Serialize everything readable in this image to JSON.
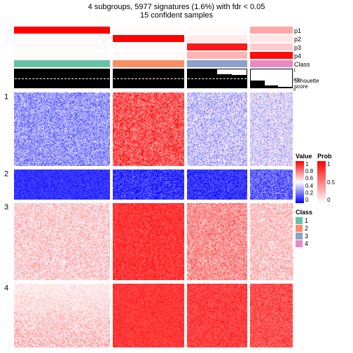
{
  "title": "4 subgroups, 5977 signatures (1.6%) with fdr < 0.05",
  "subtitle": "15 confident samples",
  "column_groups": {
    "widths_flex": [
      1.35,
      1.0,
      0.85,
      0.6
    ],
    "class_colors": [
      "#66c2a5",
      "#fc8d62",
      "#8da0cb",
      "#e78ac3"
    ]
  },
  "probability_tracks": [
    {
      "label": "p1",
      "values": [
        1.0,
        0.02,
        0.02,
        0.35
      ]
    },
    {
      "label": "p2",
      "values": [
        0.02,
        1.0,
        0.08,
        0.1
      ]
    },
    {
      "label": "p3",
      "values": [
        0.02,
        0.02,
        0.9,
        0.2
      ]
    },
    {
      "label": "p4",
      "values": [
        0.02,
        0.02,
        0.3,
        0.95
      ]
    }
  ],
  "silhouette": {
    "label": "Silhouette score",
    "ticks": [
      "1",
      "0.5",
      "0"
    ],
    "heights": [
      [
        1,
        1,
        1,
        1,
        1,
        1,
        1
      ],
      [
        1,
        1,
        1,
        1,
        1
      ],
      [
        1,
        1,
        0.75,
        0.7
      ],
      [
        0.4,
        0.1,
        0.05
      ]
    ],
    "bg": "#ffffff",
    "bar": "#000000"
  },
  "heatmap_rows": [
    {
      "label": "1",
      "height_flex": 1.1,
      "group_palettes": [
        {
          "center": "#8888ee",
          "spread": 0.35
        },
        {
          "center": "#ee6644",
          "spread": 0.45
        },
        {
          "center": "#aa88dd",
          "spread": 0.4
        },
        {
          "center": "#bbaadd",
          "spread": 0.35
        }
      ]
    },
    {
      "label": "2",
      "height_flex": 0.45,
      "group_palettes": [
        {
          "center": "#1010dd",
          "spread": 0.15
        },
        {
          "center": "#2020ee",
          "spread": 0.3
        },
        {
          "center": "#2525ee",
          "spread": 0.25
        },
        {
          "center": "#5050ee",
          "spread": 0.35
        }
      ]
    },
    {
      "label": "3",
      "height_flex": 1.15,
      "group_palettes": [
        {
          "center": "#f7cccc",
          "spread": 0.3
        },
        {
          "center": "#e82020",
          "spread": 0.2
        },
        {
          "center": "#ee8080",
          "spread": 0.35
        },
        {
          "center": "#f0b8b8",
          "spread": 0.3
        }
      ]
    },
    {
      "label": "4",
      "height_flex": 0.95,
      "group_palettes": [
        {
          "center": "#f5bbbb",
          "spread": 0.35,
          "grad": "whiten_top"
        },
        {
          "center": "#d81010",
          "spread": 0.15
        },
        {
          "center": "#e02020",
          "spread": 0.2
        },
        {
          "center": "#e83838",
          "spread": 0.25
        }
      ]
    }
  ],
  "legends": {
    "value": {
      "title": "Value",
      "stops": [
        "#ff0000",
        "#ffffff",
        "#0000ff"
      ],
      "ticks": [
        "1",
        "0.8",
        "0.6",
        "0.4",
        "0.2",
        "0"
      ]
    },
    "prob": {
      "title": "Prob",
      "stops": [
        "#ff0000",
        "#ffffff"
      ],
      "ticks": [
        "1",
        "0.5",
        "0"
      ]
    },
    "class": {
      "title": "Class",
      "items": [
        {
          "label": "1",
          "color": "#66c2a5"
        },
        {
          "label": "2",
          "color": "#fc8d62"
        },
        {
          "label": "3",
          "color": "#8da0cb"
        },
        {
          "label": "4",
          "color": "#e78ac3"
        }
      ]
    }
  }
}
